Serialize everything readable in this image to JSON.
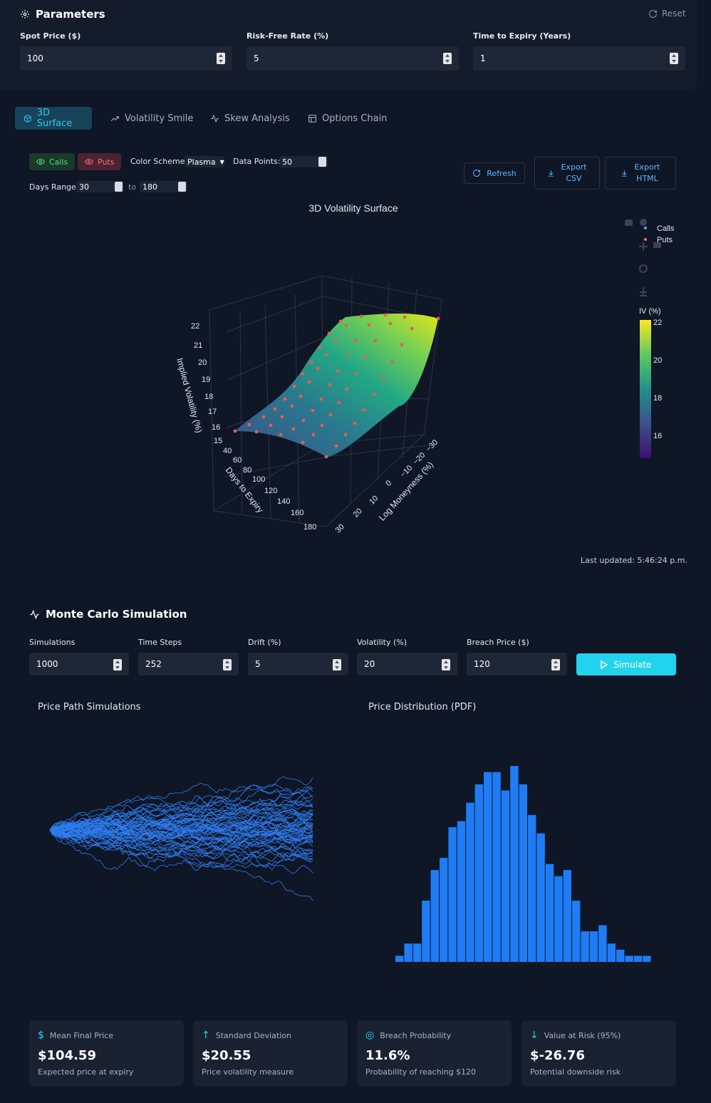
{
  "parameters": {
    "title": "Parameters",
    "reset_label": "Reset",
    "fields": [
      {
        "label": "Spot Price ($)",
        "value": "100"
      },
      {
        "label": "Risk-Free Rate (%)",
        "value": "5"
      },
      {
        "label": "Time to Expiry (Years)",
        "value": "1"
      }
    ]
  },
  "tabs": [
    "3D Surface",
    "Volatility Smile",
    "Skew Analysis",
    "Options Chain"
  ],
  "surface_controls": {
    "calls_label": "Calls",
    "puts_label": "Puts",
    "color_scheme_label": "Color Scheme:",
    "color_scheme_value": "Plasma",
    "data_points_label": "Data Points:",
    "data_points_value": "50",
    "days_range_label": "Days Range:",
    "days_from": "30",
    "to_label": "to",
    "days_to": "180",
    "refresh_label": "Refresh",
    "export_csv_label": [
      "Export",
      "CSV"
    ],
    "export_html_label": [
      "Export",
      "HTML"
    ]
  },
  "surface_chart": {
    "title": "3D Volatility Surface",
    "legend": [
      "Calls",
      "Puts"
    ],
    "colorbar_title": "IV (%)",
    "colorbar_ticks": [
      "22",
      "20",
      "18",
      "16"
    ],
    "z_axis_label": "Implied Volatility (%)",
    "z_ticks": [
      "22",
      "21",
      "20",
      "19",
      "18",
      "17",
      "16",
      "15"
    ],
    "x_axis_label": "Days to Expiry",
    "x_ticks": [
      "40",
      "60",
      "80",
      "100",
      "120",
      "140",
      "160",
      "180"
    ],
    "y_axis_label": "Log Moneyness (%)",
    "y_ticks": [
      "−30",
      "−20",
      "−10",
      "0",
      "10",
      "20",
      "30"
    ],
    "last_updated": "Last updated: 5:46:24 p.m."
  },
  "monte_carlo": {
    "title": "Monte Carlo Simulation",
    "fields": [
      {
        "label": "Simulations",
        "value": "1000"
      },
      {
        "label": "Time Steps",
        "value": "252"
      },
      {
        "label": "Drift (%)",
        "value": "5"
      },
      {
        "label": "Volatility (%)",
        "value": "20"
      },
      {
        "label": "Breach Price ($)",
        "value": "120"
      }
    ],
    "simulate_label": "Simulate",
    "paths_title": "Price Path Simulations",
    "pdf_title": "Price Distribution (PDF)"
  },
  "chart_data": {
    "type": "bar",
    "title": "Price Distribution (PDF)",
    "values": [
      1,
      3,
      3,
      10,
      15,
      17,
      22,
      23,
      26,
      29,
      31,
      31,
      28,
      32,
      29,
      24,
      21,
      16,
      14,
      15,
      10,
      5,
      5,
      6,
      3,
      2,
      1,
      1,
      1
    ]
  },
  "stats": [
    {
      "icon": "dollar-icon",
      "title": "Mean Final Price",
      "value": "$104.59",
      "sub": "Expected price at expiry"
    },
    {
      "icon": "arrow-up-icon",
      "title": "Standard Deviation",
      "value": "$20.55",
      "sub": "Price volatility measure"
    },
    {
      "icon": "target-icon",
      "title": "Breach Probability",
      "value": "11.6%",
      "sub": "Probability of reaching $120"
    },
    {
      "icon": "arrow-down-icon",
      "title": "Value at Risk (95%)",
      "value": "$-26.76",
      "sub": "Potential downside risk"
    }
  ],
  "colors": {
    "accent": "#22d3ee",
    "calls": "#4ade80",
    "puts": "#f87171",
    "bars": "#1f7cf5",
    "paths": "#2f7df0"
  }
}
